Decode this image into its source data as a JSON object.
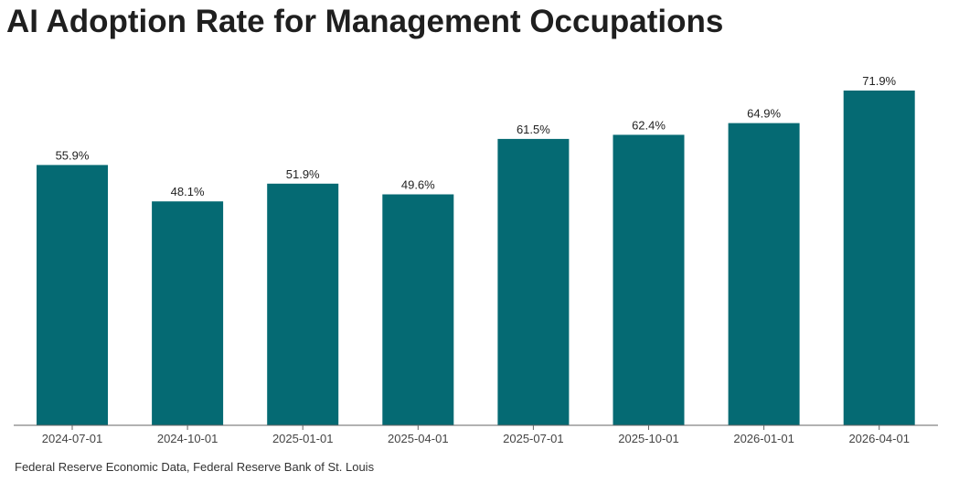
{
  "chart_data": {
    "type": "bar",
    "title": "AI Adoption Rate for Management Occupations",
    "categories": [
      "2024-07-01",
      "2024-10-01",
      "2025-01-01",
      "2025-04-01",
      "2025-07-01",
      "2025-10-01",
      "2026-01-01",
      "2026-04-01"
    ],
    "values": [
      55.9,
      48.1,
      51.9,
      49.6,
      61.5,
      62.4,
      64.9,
      71.9
    ],
    "data_labels": [
      "55.9%",
      "48.1%",
      "51.9%",
      "49.6%",
      "61.5%",
      "62.4%",
      "64.9%",
      "71.9%"
    ],
    "unit": "%",
    "xlabel": "",
    "ylabel": "",
    "ylim": [
      0,
      71.9
    ],
    "grid": false,
    "legend": "none",
    "bar_color": "#056a73"
  },
  "source": "Federal Reserve Economic Data, Federal Reserve Bank of St. Louis"
}
